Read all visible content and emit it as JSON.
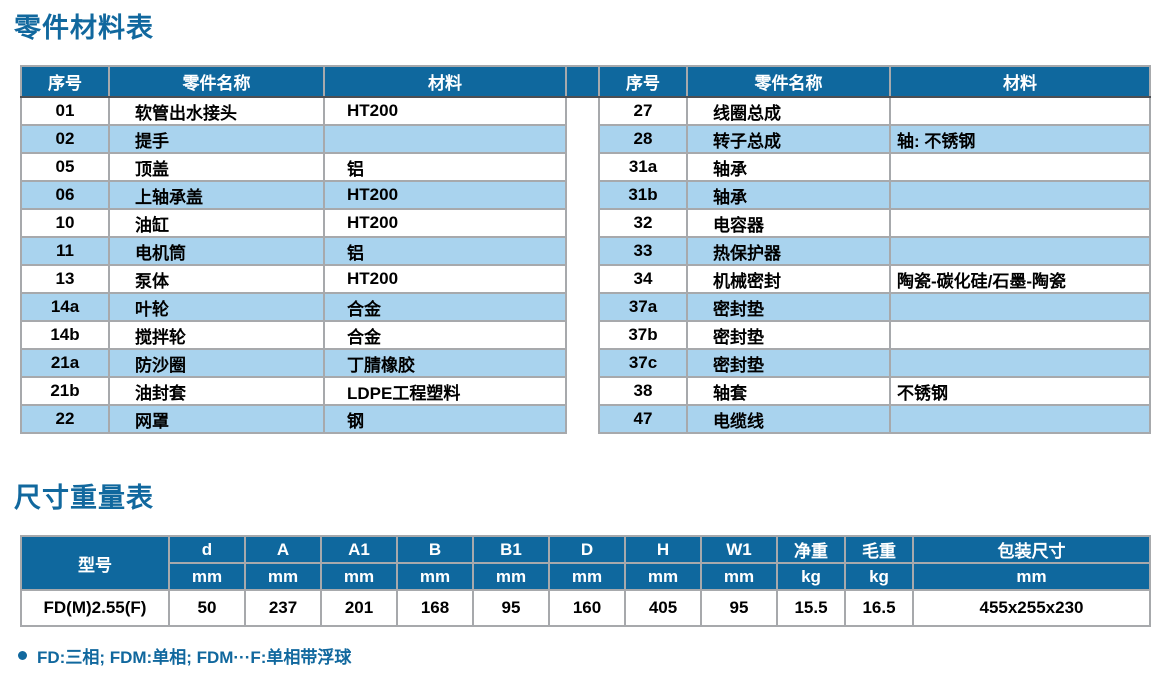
{
  "page": {
    "section1_title": "零件材料表",
    "section2_title": "尺寸重量表",
    "footnote": "FD:三相; FDM:单相; FDM···F:单相带浮球"
  },
  "colors": {
    "header_bg": "#0f689e",
    "row_alt": "#a9d3ee",
    "border_gray": "#a7a9ac",
    "header_divider": "#4d4f53",
    "title_blue": "#11689e"
  },
  "parts_table": {
    "headers": {
      "no": "序号",
      "name": "零件名称",
      "material": "材料"
    },
    "left_rows": [
      {
        "no": "01",
        "name": "软管出水接头",
        "material": "HT200"
      },
      {
        "no": "02",
        "name": "提手",
        "material": ""
      },
      {
        "no": "05",
        "name": "顶盖",
        "material": "铝"
      },
      {
        "no": "06",
        "name": "上轴承盖",
        "material": "HT200"
      },
      {
        "no": "10",
        "name": "油缸",
        "material": "HT200"
      },
      {
        "no": "11",
        "name": "电机筒",
        "material": "铝"
      },
      {
        "no": "13",
        "name": "泵体",
        "material": "HT200"
      },
      {
        "no": "14a",
        "name": "叶轮",
        "material": "合金"
      },
      {
        "no": "14b",
        "name": "搅拌轮",
        "material": "合金"
      },
      {
        "no": "21a",
        "name": "防沙圈",
        "material": "丁腈橡胶"
      },
      {
        "no": "21b",
        "name": "油封套",
        "material": "LDPE工程塑料"
      },
      {
        "no": "22",
        "name": "网罩",
        "material": "钢"
      }
    ],
    "right_rows": [
      {
        "no": "27",
        "name": "线圈总成",
        "material": ""
      },
      {
        "no": "28",
        "name": "转子总成",
        "material": "轴: 不锈钢"
      },
      {
        "no": "31a",
        "name": "轴承",
        "material": ""
      },
      {
        "no": "31b",
        "name": "轴承",
        "material": ""
      },
      {
        "no": "32",
        "name": "电容器",
        "material": ""
      },
      {
        "no": "33",
        "name": "热保护器",
        "material": ""
      },
      {
        "no": "34",
        "name": "机械密封",
        "material": "陶瓷-碳化硅/石墨-陶瓷"
      },
      {
        "no": "37a",
        "name": "密封垫",
        "material": ""
      },
      {
        "no": "37b",
        "name": "密封垫",
        "material": ""
      },
      {
        "no": "37c",
        "name": "密封垫",
        "material": ""
      },
      {
        "no": "38",
        "name": "轴套",
        "material": "不锈钢"
      },
      {
        "no": "47",
        "name": "电缆线",
        "material": ""
      }
    ]
  },
  "dimensions_table": {
    "model_header": "型号",
    "columns": [
      {
        "label": "d",
        "unit": "mm"
      },
      {
        "label": "A",
        "unit": "mm"
      },
      {
        "label": "A1",
        "unit": "mm"
      },
      {
        "label": "B",
        "unit": "mm"
      },
      {
        "label": "B1",
        "unit": "mm"
      },
      {
        "label": "D",
        "unit": "mm"
      },
      {
        "label": "H",
        "unit": "mm"
      },
      {
        "label": "W1",
        "unit": "mm"
      },
      {
        "label": "净重",
        "unit": "kg"
      },
      {
        "label": "毛重",
        "unit": "kg"
      },
      {
        "label": "包装尺寸",
        "unit": "mm"
      }
    ],
    "rows": [
      {
        "model": "FD(M)2.55(F)",
        "values": [
          "50",
          "237",
          "201",
          "168",
          "95",
          "160",
          "405",
          "95",
          "15.5",
          "16.5",
          "455x255x230"
        ]
      }
    ]
  }
}
